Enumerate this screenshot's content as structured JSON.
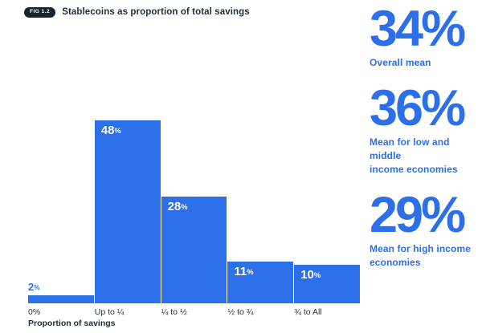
{
  "header": {
    "badge": "FIG 1.2",
    "title": "Stablecoins as proportion of total savings"
  },
  "chart_data": {
    "type": "bar",
    "categories": [
      "0%",
      "Up to ¼",
      "¼ to ½",
      "½ to ¾",
      "¾ to All"
    ],
    "values": [
      2,
      48,
      28,
      11,
      10
    ],
    "value_suffix": "%",
    "title": "Stablecoins as proportion of total savings",
    "xlabel": "Proportion of savings",
    "ylabel": "",
    "ylim": [
      0,
      50
    ],
    "grid": false,
    "legend": "none",
    "bar_label_placement": "inside-top-left, outside-above when bar too short"
  },
  "stats": [
    {
      "value": "34",
      "suffix": "%",
      "label_lines": [
        "Overall mean"
      ]
    },
    {
      "value": "36",
      "suffix": "%",
      "label_lines": [
        "Mean for low and middle",
        "income economies"
      ]
    },
    {
      "value": "29",
      "suffix": "%",
      "label_lines": [
        "Mean for high income",
        "economies"
      ]
    }
  ],
  "colors": {
    "accent": "#2D6FE9",
    "ink": "#1E2D3A",
    "badge_bg": "#17242F",
    "background": "#FFFFFF",
    "bar_label_inside": "#FFFFFF"
  }
}
